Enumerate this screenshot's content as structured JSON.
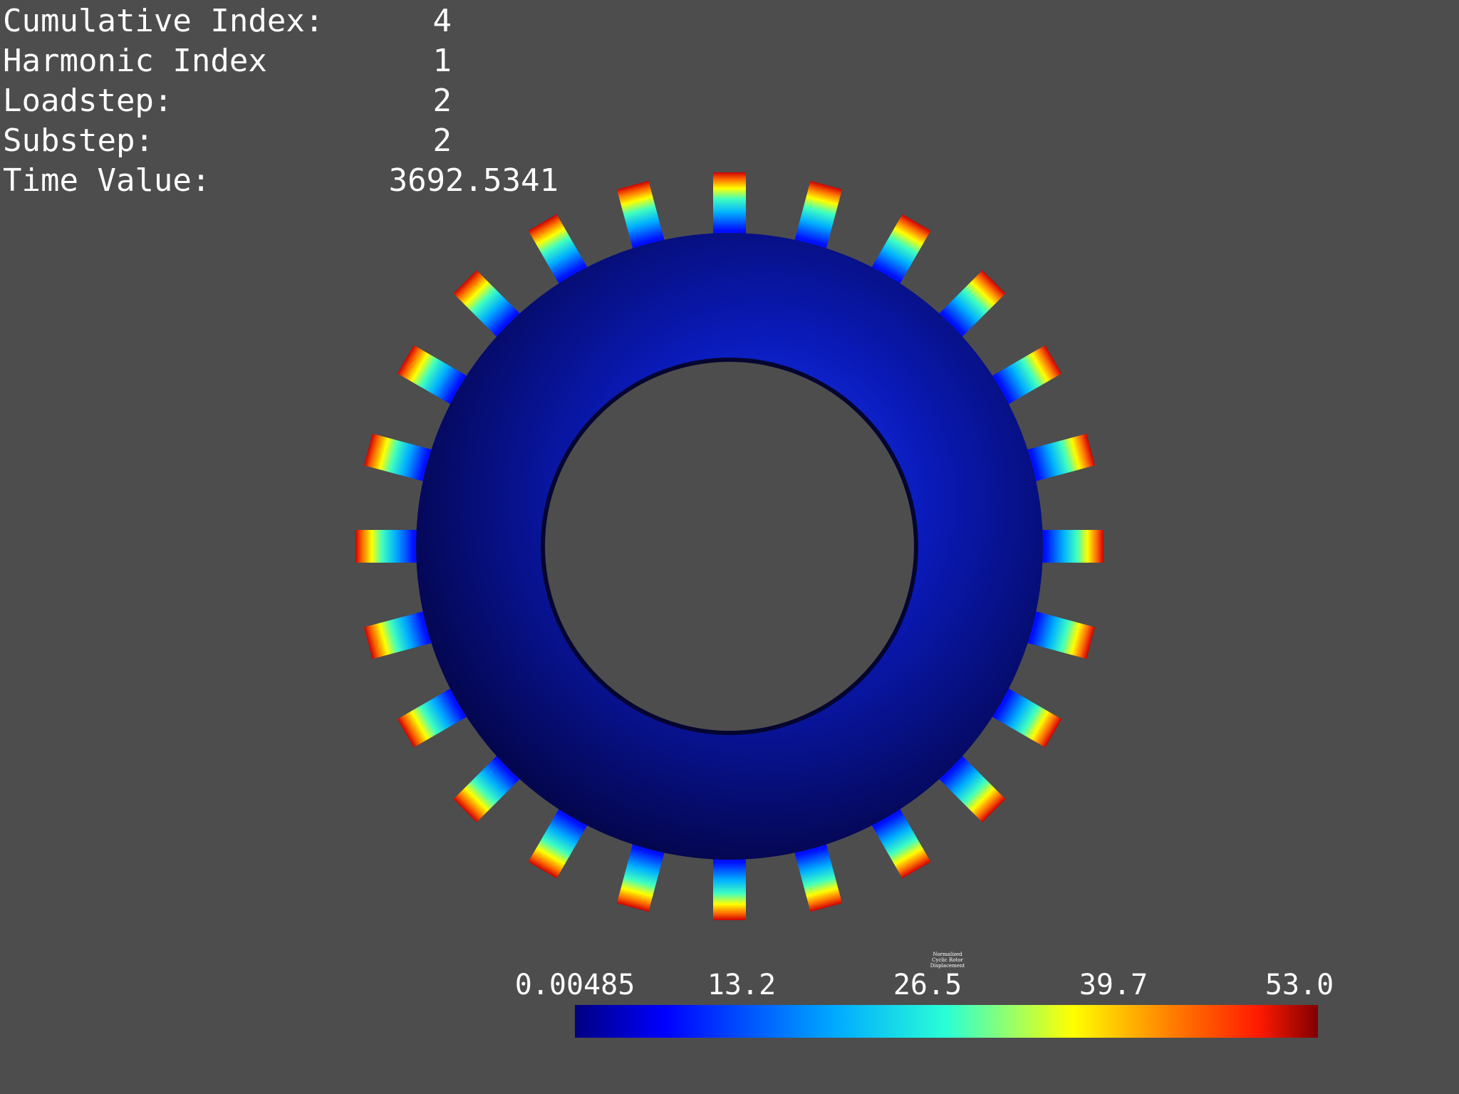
{
  "info": [
    {
      "label": "Cumulative Index:",
      "value": "4"
    },
    {
      "label": "Harmonic Index",
      "value": "1"
    },
    {
      "label": "Loadstep:",
      "value": "2"
    },
    {
      "label": "Substep:",
      "value": "2"
    },
    {
      "label": "Time Value:",
      "value": "3692.5341"
    }
  ],
  "colorbar": {
    "title": "Normalized\nCyclic Rotor\nDisplacement",
    "ticks": [
      "0.00485",
      "13.2",
      "26.5",
      "39.7",
      "53.0"
    ],
    "min": 0.00485,
    "max": 53.0,
    "colors": [
      "#000080",
      "#0000ff",
      "#00aaff",
      "#2affd5",
      "#ffff00",
      "#ff8000",
      "#ff1a00",
      "#800000"
    ]
  },
  "rotor": {
    "tooth_count": 24,
    "disk_colors": {
      "dark": "#05055e",
      "mid": "#0a1aa8",
      "bright": "#1530d8"
    },
    "background": "#4d4d4d"
  }
}
